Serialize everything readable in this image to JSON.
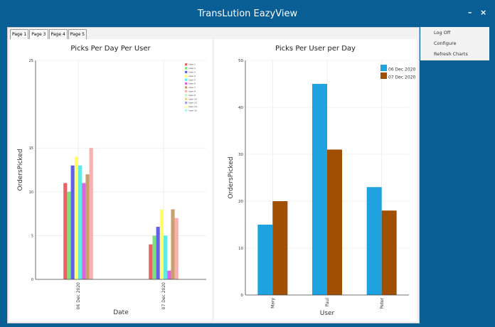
{
  "window": {
    "title": "TransLution EazyView",
    "minimize_glyph": "–",
    "close_glyph": "×"
  },
  "tabs": [
    {
      "label": "Page 1",
      "active": false
    },
    {
      "label": "Page 3",
      "active": true
    },
    {
      "label": "Page 4",
      "active": false
    },
    {
      "label": "Page 5",
      "active": false
    }
  ],
  "menu": {
    "items": [
      "Log Off",
      "Configure",
      "Refresh Charts"
    ]
  },
  "colors": {
    "titlebar": "#0a5e96",
    "background": "#0a5e96"
  },
  "chart_data": [
    {
      "type": "bar",
      "title": "Picks Per Day Per User",
      "xlabel": "Date",
      "ylabel": "OrdersPicked",
      "ylim": [
        0,
        25
      ],
      "yticks": [
        "0",
        "5",
        "10",
        "15",
        "25"
      ],
      "categories": [
        "06 Dec 2020",
        "07 Dec 2020"
      ],
      "legend_position": "top-right",
      "grid": true,
      "series": [
        {
          "name": "User 1",
          "color": "#f06060",
          "values": [
            11,
            4
          ]
        },
        {
          "name": "User 2",
          "color": "#80e080",
          "values": [
            10,
            5
          ]
        },
        {
          "name": "User 3",
          "color": "#6060e8",
          "values": [
            13,
            6
          ]
        },
        {
          "name": "User 4",
          "color": "#ffff66",
          "values": [
            14,
            8
          ]
        },
        {
          "name": "User 5",
          "color": "#60e8e8",
          "values": [
            13,
            5
          ]
        },
        {
          "name": "User 6",
          "color": "#e060e8",
          "values": [
            11,
            1
          ]
        },
        {
          "name": "User 7",
          "color": "#c8a070",
          "values": [
            12,
            8
          ]
        },
        {
          "name": "User 8",
          "color": "#f8b0b0",
          "values": [
            15,
            7
          ]
        },
        {
          "name": "User 9",
          "color": "#c8f0c8",
          "values": [
            0,
            0
          ]
        },
        {
          "name": "User 10",
          "color": "#e8d090",
          "values": [
            0,
            0
          ]
        },
        {
          "name": "User 12",
          "color": "#a0a0e8",
          "values": [
            0,
            0
          ]
        },
        {
          "name": "User 14",
          "color": "#ffffb0",
          "values": [
            0,
            0
          ]
        },
        {
          "name": "User 15",
          "color": "#b0f0f0",
          "values": [
            0,
            0
          ]
        }
      ]
    },
    {
      "type": "bar",
      "title": "Picks Per User per Day",
      "xlabel": "User",
      "ylabel": "OrdersPicked",
      "ylim": [
        0,
        50
      ],
      "yticks": [
        "0",
        "10",
        "20",
        "30",
        "40",
        "50"
      ],
      "categories": [
        "Mary",
        "Paul",
        "Peter"
      ],
      "legend_position": "top-right",
      "grid": true,
      "series": [
        {
          "name": "06 Dec 2020",
          "color": "#1fa3e0",
          "values": [
            15,
            45,
            23
          ]
        },
        {
          "name": "07 Dec 2020",
          "color": "#a04f00",
          "values": [
            20,
            31,
            18
          ]
        }
      ]
    }
  ]
}
